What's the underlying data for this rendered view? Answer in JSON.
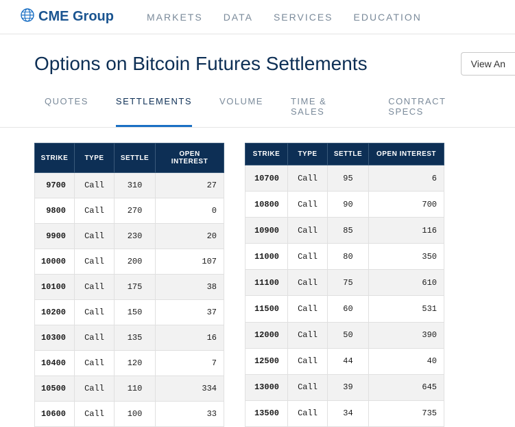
{
  "brand": "CME Group",
  "nav": {
    "markets": "MARKETS",
    "data": "DATA",
    "services": "SERVICES",
    "education": "EDUCATION"
  },
  "page_title": "Options on Bitcoin Futures Settlements",
  "view_button": "View An",
  "tabs": {
    "quotes": "QUOTES",
    "settlements": "SETTLEMENTS",
    "volume": "VOLUME",
    "time_sales": "TIME & SALES",
    "contract_specs": "CONTRACT SPECS"
  },
  "columns": {
    "strike": "STRIKE",
    "type": "TYPE",
    "settle": "SETTLE",
    "open_interest": "OPEN INTEREST"
  },
  "left_table": [
    {
      "strike": "9700",
      "type": "Call",
      "settle": "310",
      "oi": "27"
    },
    {
      "strike": "9800",
      "type": "Call",
      "settle": "270",
      "oi": "0"
    },
    {
      "strike": "9900",
      "type": "Call",
      "settle": "230",
      "oi": "20"
    },
    {
      "strike": "10000",
      "type": "Call",
      "settle": "200",
      "oi": "107"
    },
    {
      "strike": "10100",
      "type": "Call",
      "settle": "175",
      "oi": "38"
    },
    {
      "strike": "10200",
      "type": "Call",
      "settle": "150",
      "oi": "37"
    },
    {
      "strike": "10300",
      "type": "Call",
      "settle": "135",
      "oi": "16"
    },
    {
      "strike": "10400",
      "type": "Call",
      "settle": "120",
      "oi": "7"
    },
    {
      "strike": "10500",
      "type": "Call",
      "settle": "110",
      "oi": "334"
    },
    {
      "strike": "10600",
      "type": "Call",
      "settle": "100",
      "oi": "33"
    }
  ],
  "right_table": [
    {
      "strike": "10700",
      "type": "Call",
      "settle": "95",
      "oi": "6"
    },
    {
      "strike": "10800",
      "type": "Call",
      "settle": "90",
      "oi": "700"
    },
    {
      "strike": "10900",
      "type": "Call",
      "settle": "85",
      "oi": "116"
    },
    {
      "strike": "11000",
      "type": "Call",
      "settle": "80",
      "oi": "350"
    },
    {
      "strike": "11100",
      "type": "Call",
      "settle": "75",
      "oi": "610"
    },
    {
      "strike": "11500",
      "type": "Call",
      "settle": "60",
      "oi": "531"
    },
    {
      "strike": "12000",
      "type": "Call",
      "settle": "50",
      "oi": "390"
    },
    {
      "strike": "12500",
      "type": "Call",
      "settle": "44",
      "oi": "40"
    },
    {
      "strike": "13000",
      "type": "Call",
      "settle": "39",
      "oi": "645"
    },
    {
      "strike": "13500",
      "type": "Call",
      "settle": "34",
      "oi": "735"
    }
  ],
  "colors": {
    "header_bg": "#0d2f55",
    "accent": "#1a6fc4",
    "brand": "#1a5490",
    "nav_text": "#7a8a9a",
    "row_shade": "#f2f2f2",
    "border": "#e0e0e0"
  }
}
